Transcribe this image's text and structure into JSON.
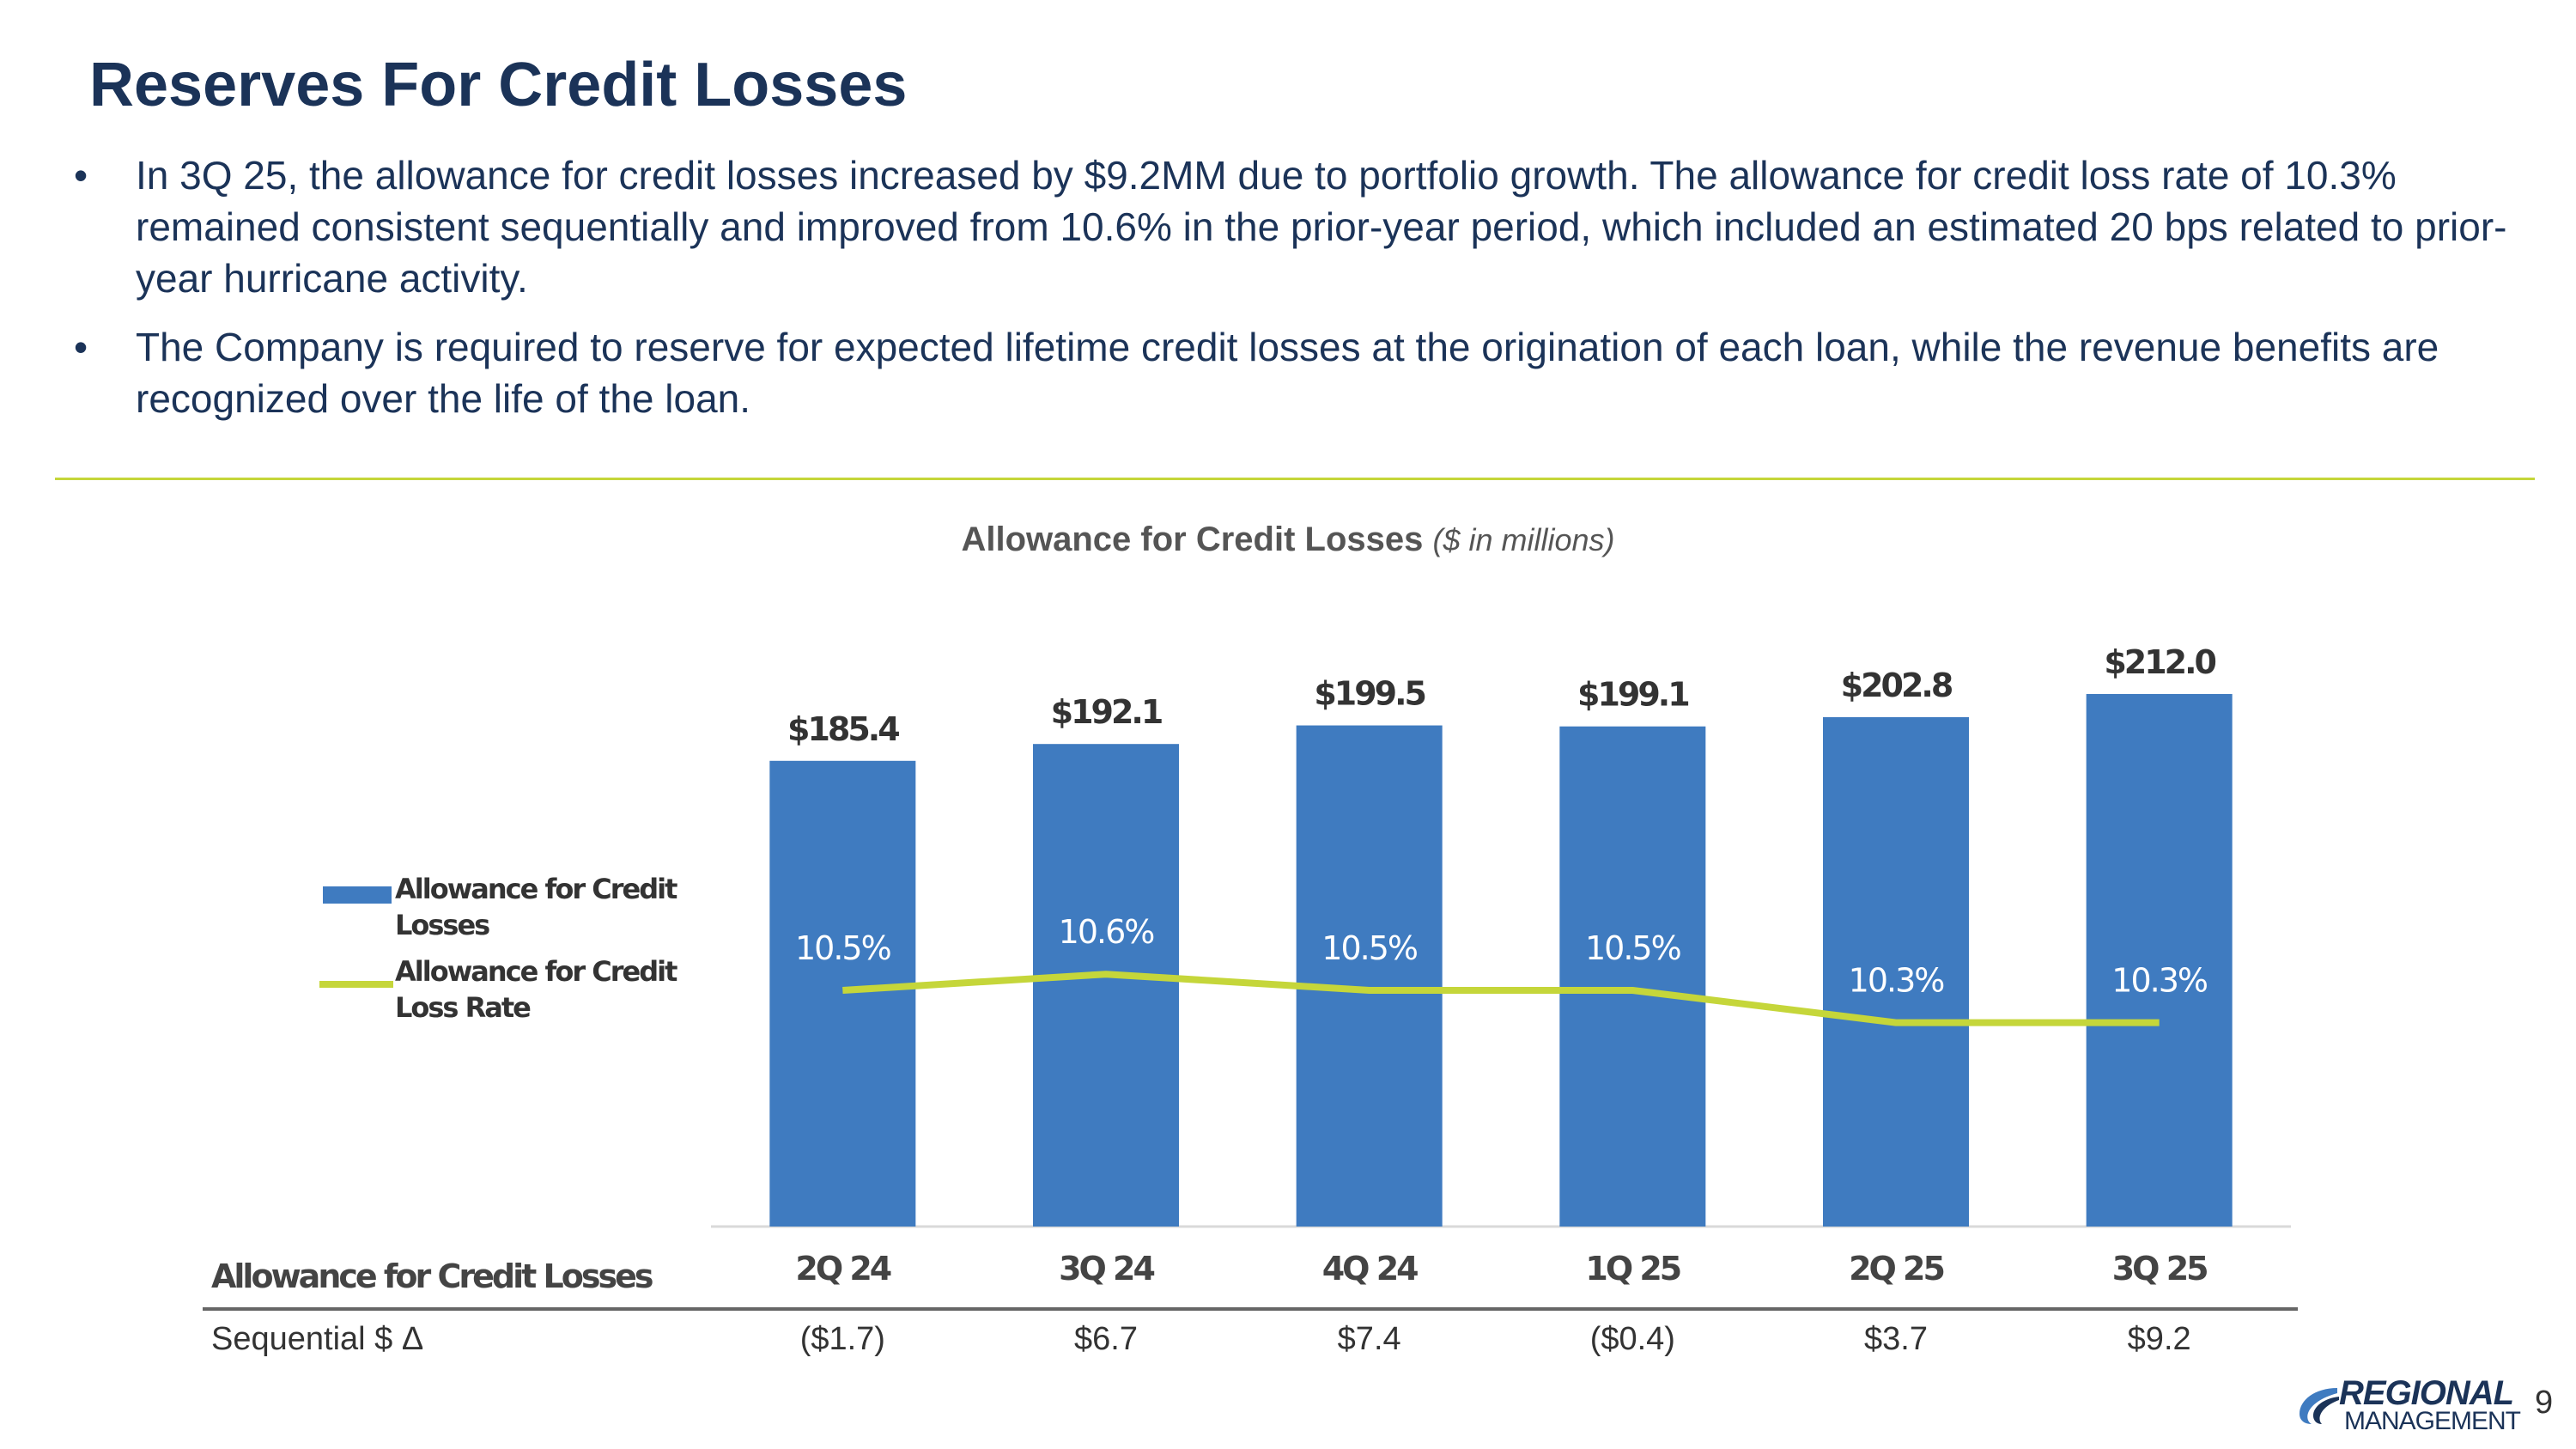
{
  "title": "Reserves For Credit Losses",
  "bullets": [
    "In 3Q 25, the allowance for credit losses increased by $9.2MM due to portfolio growth. The allowance for credit loss rate of 10.3% remained consistent sequentially and improved from 10.6% in the prior-year period, which included an estimated 20 bps related to prior-year hurricane activity.",
    "The Company is required to reserve for expected lifetime credit losses at the origination of each loan, while the revenue benefits are recognized over the life of the loan."
  ],
  "bullet_glyph": "•",
  "chart_data": {
    "type": "bar",
    "title": "Allowance for Credit Losses",
    "subtitle": "($ in millions)",
    "categories": [
      "2Q24",
      "3Q24",
      "4Q24",
      "1Q25",
      "2Q25",
      "3Q25"
    ],
    "category_labels": [
      "2Q 24",
      "3Q 24",
      "4Q 24",
      "1Q 25",
      "2Q 25",
      "3Q 25"
    ],
    "series": [
      {
        "name": "Allowance for Credit Losses",
        "kind": "bar",
        "color": "#3f7bc0",
        "values": [
          185.4,
          192.1,
          199.5,
          199.1,
          202.8,
          212.0
        ],
        "labels": [
          "$185.4",
          "$192.1",
          "$199.5",
          "$199.1",
          "$202.8",
          "$212.0"
        ]
      },
      {
        "name": "Allowance for Credit Loss Rate",
        "kind": "line",
        "color": "#c5d63a",
        "values": [
          10.5,
          10.6,
          10.5,
          10.5,
          10.3,
          10.3
        ],
        "labels": [
          "10.5%",
          "10.6%",
          "10.5%",
          "10.5%",
          "10.3%",
          "10.3%"
        ]
      }
    ],
    "legend": {
      "position": "left",
      "items": [
        {
          "line1": "Allowance for Credit",
          "line2": "Losses"
        },
        {
          "line1": "Allowance for Credit",
          "line2": "Loss Rate"
        }
      ]
    },
    "grid": false,
    "table": {
      "header": "Allowance for Credit Losses",
      "row_label": "Sequential $ Δ",
      "row_values": [
        "($1.7)",
        "$6.7",
        "$7.4",
        "($0.4)",
        "$3.7",
        "$9.2"
      ]
    }
  },
  "logo": {
    "line1": "REGIONAL",
    "line2": "MANAGEMENT",
    "mark": "®"
  },
  "page_number": "9"
}
